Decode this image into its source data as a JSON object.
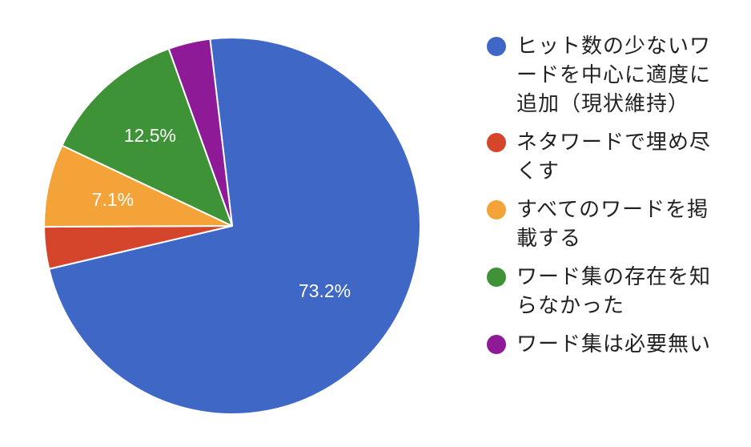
{
  "chart_data": {
    "type": "pie",
    "start_angle_deg": -6.75,
    "direction": "clockwise",
    "legend_position": "right",
    "slices": [
      {
        "label": "ヒット数の少ないワードを中心に適度に追加（現状維持）",
        "value": 73.2,
        "color": "#3F67C6",
        "data_label": "73.2%"
      },
      {
        "label": "ネタワードで埋め尽くす",
        "value": 3.6,
        "color": "#D5452B",
        "data_label": ""
      },
      {
        "label": "すべてのワードを掲載する",
        "value": 7.1,
        "color": "#F4A338",
        "data_label": "7.1%"
      },
      {
        "label": "ワード集の存在を知らなかった",
        "value": 12.5,
        "color": "#3E9337",
        "data_label": "12.5%"
      },
      {
        "label": "ワード集は必要無い",
        "value": 3.6,
        "color": "#8E1A97",
        "data_label": ""
      }
    ]
  }
}
